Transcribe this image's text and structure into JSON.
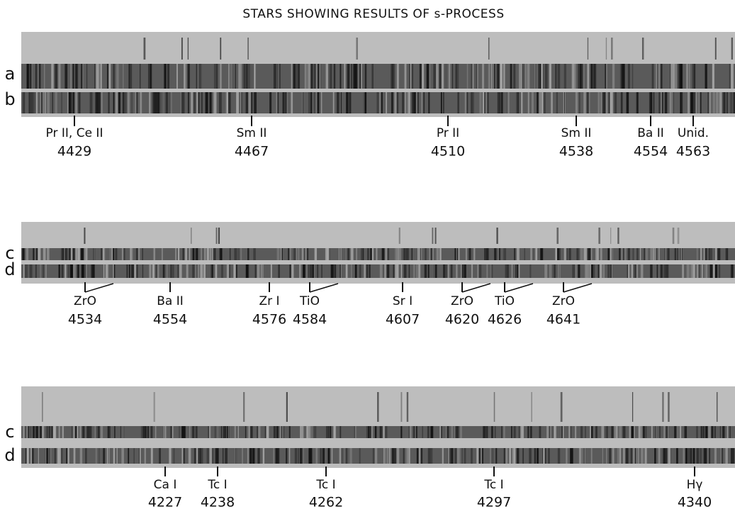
{
  "title": "STARS SHOWING RESULTS OF s-PROCESS",
  "panels": [
    {
      "rows": [
        "a",
        "b"
      ],
      "lines": [
        {
          "label": "Pr II, Ce II",
          "wavelength": "4429"
        },
        {
          "label": "Sm II",
          "wavelength": "4467"
        },
        {
          "label": "Pr II",
          "wavelength": "4510"
        },
        {
          "label": "Sm II",
          "wavelength": "4538"
        },
        {
          "label": "Ba II",
          "wavelength": "4554"
        },
        {
          "label": "Unid.",
          "wavelength": "4563"
        }
      ]
    },
    {
      "rows": [
        "c",
        "d"
      ],
      "lines": [
        {
          "label": "ZrO",
          "wavelength": "4534"
        },
        {
          "label": "Ba II",
          "wavelength": "4554"
        },
        {
          "label": "Zr I",
          "wavelength": "4576"
        },
        {
          "label": "TiO",
          "wavelength": "4584"
        },
        {
          "label": "Sr I",
          "wavelength": "4607"
        },
        {
          "label": "ZrO",
          "wavelength": "4620"
        },
        {
          "label": "TiO",
          "wavelength": "4626"
        },
        {
          "label": "ZrO",
          "wavelength": "4641"
        }
      ]
    },
    {
      "rows": [
        "c",
        "d"
      ],
      "lines": [
        {
          "label": "Ca I",
          "wavelength": "4227"
        },
        {
          "label": "Tc I",
          "wavelength": "4238"
        },
        {
          "label": "Tc I",
          "wavelength": "4262"
        },
        {
          "label": "Tc I",
          "wavelength": "4297"
        },
        {
          "label": "Hγ",
          "wavelength": "4340"
        }
      ]
    }
  ]
}
